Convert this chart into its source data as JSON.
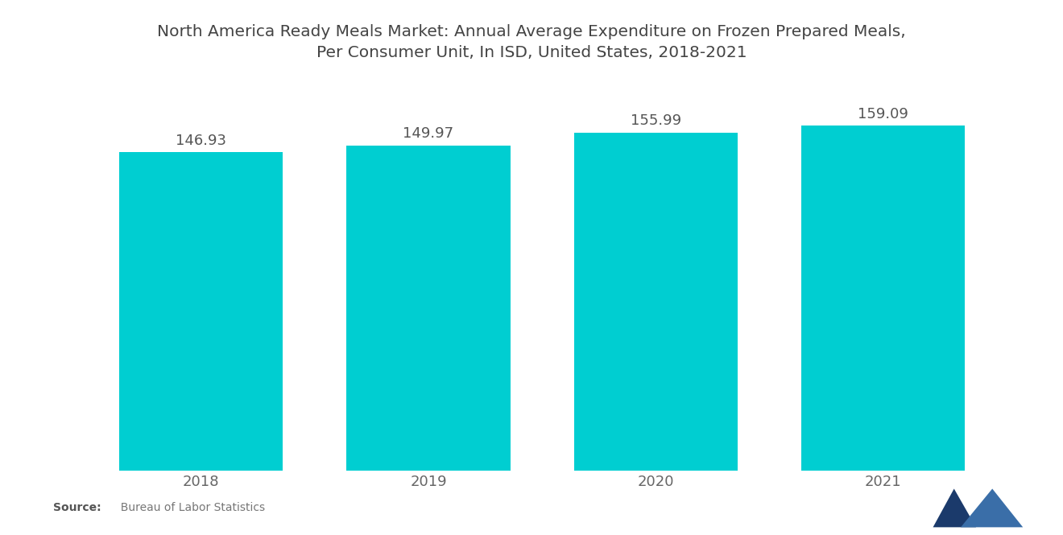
{
  "title": "North America Ready Meals Market: Annual Average Expenditure on Frozen Prepared Meals,\nPer Consumer Unit, In ISD, United States, 2018-2021",
  "categories": [
    "2018",
    "2019",
    "2020",
    "2021"
  ],
  "values": [
    146.93,
    149.97,
    155.99,
    159.09
  ],
  "bar_color": "#00CED1",
  "background_color": "#ffffff",
  "title_fontsize": 14.5,
  "label_fontsize": 13,
  "tick_fontsize": 13,
  "source_bold": "Source:",
  "source_normal": "  Bureau of Labor Statistics",
  "ylim": [
    0,
    185
  ],
  "bar_width": 0.72
}
